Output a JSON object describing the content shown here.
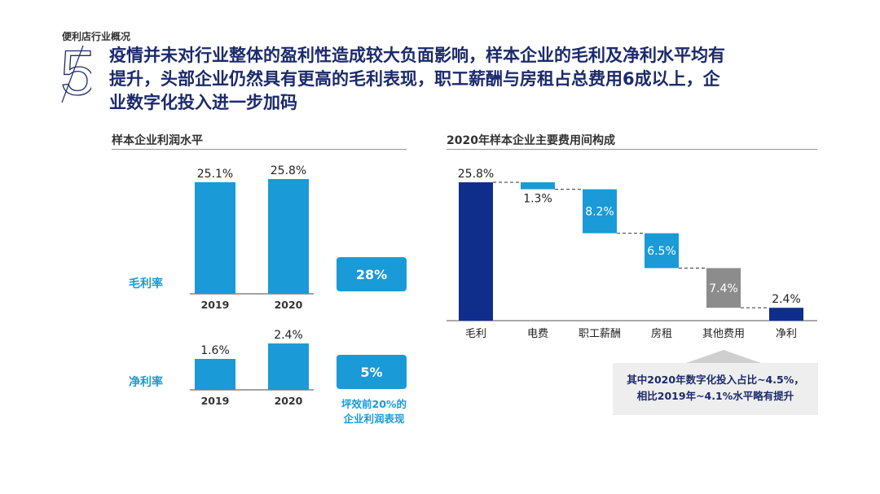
{
  "section_label": "便利店行业概况",
  "page_number": "5",
  "headline_lines": [
    "疫情并未对行业整体的盈利性造成较大负面影响，样本企业的毛利及净利水平均有",
    "提升，头部企业仍然具有更高的毛利表现，职工薪酬与房租占总费用6成以上，企",
    "业数字化投入进一步加码"
  ],
  "left_panel": {
    "title": "样本企业利润水平",
    "gross_label": "毛利率",
    "net_label": "净利率",
    "gross_top20": "28%",
    "net_top20": "5%",
    "top20_note_lines": [
      "坪效前20%的",
      "企业利润表现"
    ]
  },
  "right_panel": {
    "title": "2020年样本企业主要费用间构成",
    "callout_lines": [
      "其中2020年数字化投入占比~4.5%，",
      "相比2019年~4.1%水平略有提升"
    ]
  },
  "colors": {
    "blue": "#1a9ad6",
    "navy": "#0f2d8a",
    "gray": "#8c8c8c",
    "title": "#1b2a6b"
  },
  "chart_data": [
    {
      "type": "bar",
      "title": "毛利率",
      "categories": [
        "2019",
        "2020"
      ],
      "values": [
        25.1,
        25.8
      ],
      "labels": [
        "25.1%",
        "25.8%"
      ],
      "unit": "%"
    },
    {
      "type": "bar",
      "title": "净利率",
      "categories": [
        "2019",
        "2020"
      ],
      "values": [
        1.6,
        2.4
      ],
      "labels": [
        "1.6%",
        "2.4%"
      ],
      "unit": "%"
    },
    {
      "type": "waterfall",
      "title": "2020年样本企业主要费用间构成",
      "categories": [
        "毛利",
        "电费",
        "职工薪酬",
        "房租",
        "其他费用",
        "净利"
      ],
      "values": [
        25.8,
        1.3,
        8.2,
        6.5,
        7.4,
        2.4
      ],
      "labels": [
        "25.8%",
        "1.3%",
        "8.2%",
        "6.5%",
        "7.4%",
        "2.4%"
      ],
      "kinds": [
        "total",
        "decrease",
        "decrease",
        "decrease",
        "decrease",
        "total"
      ],
      "unit": "%"
    }
  ]
}
